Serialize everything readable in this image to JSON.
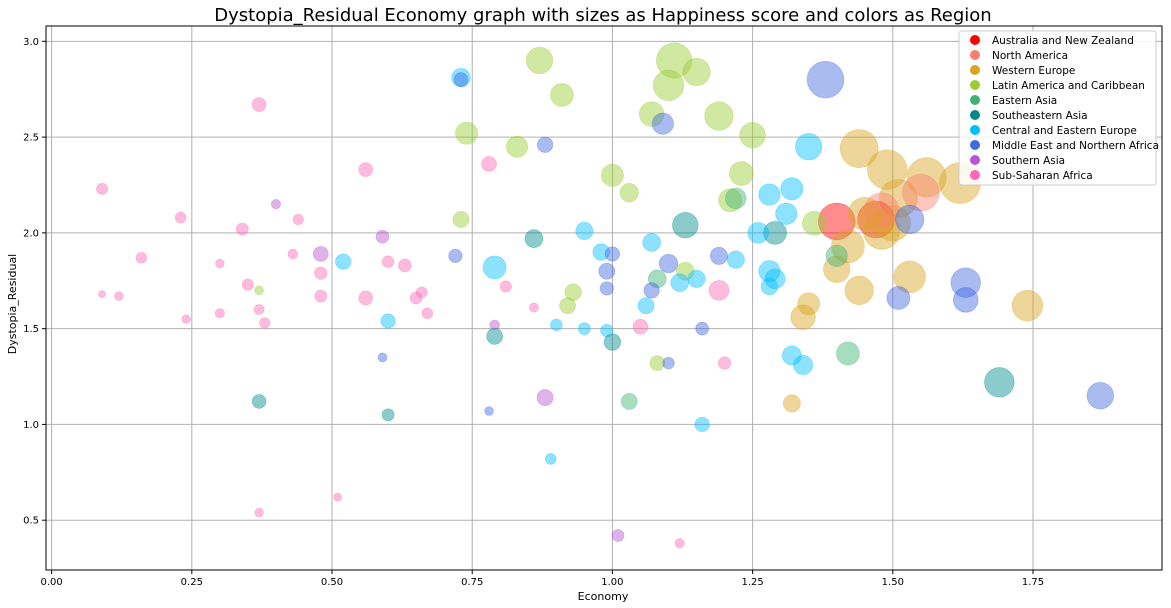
{
  "chart_data": {
    "type": "scatter",
    "title": "Dystopia_Residual Economy graph with sizes as Happiness score and colors as Region",
    "xlabel": "Economy",
    "ylabel": "Dystopia_Residual",
    "xlim": [
      -0.01,
      1.98
    ],
    "ylim": [
      0.24,
      3.08
    ],
    "x_ticks": [
      "0.00",
      "0.25",
      "0.50",
      "0.75",
      "1.00",
      "1.25",
      "1.50",
      "1.75"
    ],
    "y_ticks": [
      "0.5",
      "1.0",
      "1.5",
      "2.0",
      "2.5",
      "3.0"
    ],
    "grid": true,
    "legend_position": "top-right",
    "size_encodes": "Happiness score",
    "color_encodes": "Region",
    "regions": [
      {
        "name": "Australia and New Zealand",
        "color": "#ff0000"
      },
      {
        "name": "North America",
        "color": "#fa8072"
      },
      {
        "name": "Western Europe",
        "color": "#daa520"
      },
      {
        "name": "Latin America and Caribbean",
        "color": "#9acd32"
      },
      {
        "name": "Eastern Asia",
        "color": "#3cb371"
      },
      {
        "name": "Southeastern Asia",
        "color": "#008b8b"
      },
      {
        "name": "Central and Eastern Europe",
        "color": "#00bfff"
      },
      {
        "name": "Middle East and Northern Africa",
        "color": "#4169e1"
      },
      {
        "name": "Southern Asia",
        "color": "#ba55d3"
      },
      {
        "name": "Sub-Saharan Africa",
        "color": "#ff69b4"
      }
    ],
    "points": [
      {
        "region": "Australia and New Zealand",
        "x": 1.4,
        "y": 2.06,
        "size": 7.3
      },
      {
        "region": "Australia and New Zealand",
        "x": 1.47,
        "y": 2.07,
        "size": 7.3
      },
      {
        "region": "North America",
        "x": 1.55,
        "y": 2.21,
        "size": 7.3
      },
      {
        "region": "North America",
        "x": 1.48,
        "y": 2.12,
        "size": 7.1
      },
      {
        "region": "Western Europe",
        "x": 1.62,
        "y": 2.26,
        "size": 7.6
      },
      {
        "region": "Western Europe",
        "x": 1.56,
        "y": 2.29,
        "size": 7.5
      },
      {
        "region": "Western Europe",
        "x": 1.49,
        "y": 2.33,
        "size": 7.5
      },
      {
        "region": "Western Europe",
        "x": 1.44,
        "y": 2.44,
        "size": 7.4
      },
      {
        "region": "Western Europe",
        "x": 1.51,
        "y": 2.18,
        "size": 7.4
      },
      {
        "region": "Western Europe",
        "x": 1.48,
        "y": 2.01,
        "size": 7.3
      },
      {
        "region": "Western Europe",
        "x": 1.5,
        "y": 2.05,
        "size": 7.2
      },
      {
        "region": "Western Europe",
        "x": 1.45,
        "y": 2.1,
        "size": 7.0
      },
      {
        "region": "Western Europe",
        "x": 1.42,
        "y": 1.93,
        "size": 7.0
      },
      {
        "region": "Western Europe",
        "x": 1.53,
        "y": 1.77,
        "size": 6.9
      },
      {
        "region": "Western Europe",
        "x": 1.74,
        "y": 1.62,
        "size": 6.8
      },
      {
        "region": "Western Europe",
        "x": 1.44,
        "y": 1.7,
        "size": 6.6
      },
      {
        "region": "Western Europe",
        "x": 1.4,
        "y": 1.81,
        "size": 6.4
      },
      {
        "region": "Western Europe",
        "x": 1.34,
        "y": 1.56,
        "size": 6.2
      },
      {
        "region": "Western Europe",
        "x": 1.35,
        "y": 1.63,
        "size": 5.9
      },
      {
        "region": "Western Europe",
        "x": 1.32,
        "y": 1.11,
        "size": 5.2
      },
      {
        "region": "Latin America and Caribbean",
        "x": 1.11,
        "y": 2.9,
        "size": 7.2
      },
      {
        "region": "Latin America and Caribbean",
        "x": 1.1,
        "y": 2.77,
        "size": 6.8
      },
      {
        "region": "Latin America and Caribbean",
        "x": 1.15,
        "y": 2.84,
        "size": 6.5
      },
      {
        "region": "Latin America and Caribbean",
        "x": 0.87,
        "y": 2.9,
        "size": 6.4
      },
      {
        "region": "Latin America and Caribbean",
        "x": 1.19,
        "y": 2.61,
        "size": 6.6
      },
      {
        "region": "Latin America and Caribbean",
        "x": 1.25,
        "y": 2.51,
        "size": 6.3
      },
      {
        "region": "Latin America and Caribbean",
        "x": 0.91,
        "y": 2.72,
        "size": 6.0
      },
      {
        "region": "Latin America and Caribbean",
        "x": 1.07,
        "y": 2.62,
        "size": 6.2
      },
      {
        "region": "Latin America and Caribbean",
        "x": 0.74,
        "y": 2.52,
        "size": 5.9
      },
      {
        "region": "Latin America and Caribbean",
        "x": 0.83,
        "y": 2.45,
        "size": 5.8
      },
      {
        "region": "Latin America and Caribbean",
        "x": 1.23,
        "y": 2.31,
        "size": 6.1
      },
      {
        "region": "Latin America and Caribbean",
        "x": 1.0,
        "y": 2.3,
        "size": 5.9
      },
      {
        "region": "Latin America and Caribbean",
        "x": 1.03,
        "y": 2.21,
        "size": 5.4
      },
      {
        "region": "Latin America and Caribbean",
        "x": 1.21,
        "y": 2.17,
        "size": 6.0
      },
      {
        "region": "Latin America and Caribbean",
        "x": 0.73,
        "y": 2.07,
        "size": 5.0
      },
      {
        "region": "Latin America and Caribbean",
        "x": 0.93,
        "y": 1.69,
        "size": 5.1
      },
      {
        "region": "Latin America and Caribbean",
        "x": 0.92,
        "y": 1.62,
        "size": 5.0
      },
      {
        "region": "Latin America and Caribbean",
        "x": 1.13,
        "y": 1.8,
        "size": 5.3
      },
      {
        "region": "Latin America and Caribbean",
        "x": 1.08,
        "y": 1.32,
        "size": 4.8
      },
      {
        "region": "Latin America and Caribbean",
        "x": 1.36,
        "y": 2.05,
        "size": 6.1
      },
      {
        "region": "Latin America and Caribbean",
        "x": 0.37,
        "y": 1.7,
        "size": 3.4
      },
      {
        "region": "Eastern Asia",
        "x": 1.42,
        "y": 1.37,
        "size": 6.0
      },
      {
        "region": "Eastern Asia",
        "x": 1.4,
        "y": 1.88,
        "size": 5.8
      },
      {
        "region": "Eastern Asia",
        "x": 1.22,
        "y": 2.18,
        "size": 5.7
      },
      {
        "region": "Eastern Asia",
        "x": 1.08,
        "y": 1.76,
        "size": 5.3
      },
      {
        "region": "Eastern Asia",
        "x": 1.03,
        "y": 1.12,
        "size": 5.0
      },
      {
        "region": "Southeastern Asia",
        "x": 1.69,
        "y": 1.22,
        "size": 6.7
      },
      {
        "region": "Southeastern Asia",
        "x": 1.13,
        "y": 2.04,
        "size": 6.3
      },
      {
        "region": "Southeastern Asia",
        "x": 1.29,
        "y": 2.0,
        "size": 6.0
      },
      {
        "region": "Southeastern Asia",
        "x": 0.86,
        "y": 1.97,
        "size": 5.3
      },
      {
        "region": "Southeastern Asia",
        "x": 0.79,
        "y": 1.46,
        "size": 5.0
      },
      {
        "region": "Southeastern Asia",
        "x": 1.0,
        "y": 1.43,
        "size": 5.1
      },
      {
        "region": "Southeastern Asia",
        "x": 0.37,
        "y": 1.12,
        "size": 4.6
      },
      {
        "region": "Southeastern Asia",
        "x": 0.6,
        "y": 1.05,
        "size": 4.2
      },
      {
        "region": "Central and Eastern Europe",
        "x": 1.35,
        "y": 2.45,
        "size": 6.4
      },
      {
        "region": "Central and Eastern Europe",
        "x": 1.32,
        "y": 2.23,
        "size": 5.9
      },
      {
        "region": "Central and Eastern Europe",
        "x": 1.28,
        "y": 2.2,
        "size": 5.8
      },
      {
        "region": "Central and Eastern Europe",
        "x": 1.31,
        "y": 2.1,
        "size": 5.8
      },
      {
        "region": "Central and Eastern Europe",
        "x": 1.26,
        "y": 2.0,
        "size": 5.7
      },
      {
        "region": "Central and Eastern Europe",
        "x": 0.73,
        "y": 2.81,
        "size": 5.4
      },
      {
        "region": "Central and Eastern Europe",
        "x": 0.95,
        "y": 2.01,
        "size": 5.2
      },
      {
        "region": "Central and Eastern Europe",
        "x": 1.07,
        "y": 1.95,
        "size": 5.3
      },
      {
        "region": "Central and Eastern Europe",
        "x": 0.98,
        "y": 1.9,
        "size": 5.1
      },
      {
        "region": "Central and Eastern Europe",
        "x": 0.79,
        "y": 1.82,
        "size": 6.0
      },
      {
        "region": "Central and Eastern Europe",
        "x": 1.22,
        "y": 1.86,
        "size": 5.2
      },
      {
        "region": "Central and Eastern Europe",
        "x": 1.28,
        "y": 1.8,
        "size": 5.8
      },
      {
        "region": "Central and Eastern Europe",
        "x": 1.29,
        "y": 1.76,
        "size": 5.6
      },
      {
        "region": "Central and Eastern Europe",
        "x": 1.28,
        "y": 1.72,
        "size": 5.1
      },
      {
        "region": "Central and Eastern Europe",
        "x": 1.12,
        "y": 1.74,
        "size": 5.3
      },
      {
        "region": "Central and Eastern Europe",
        "x": 1.15,
        "y": 1.76,
        "size": 5.2
      },
      {
        "region": "Central and Eastern Europe",
        "x": 1.06,
        "y": 1.62,
        "size": 5.0
      },
      {
        "region": "Central and Eastern Europe",
        "x": 0.52,
        "y": 1.85,
        "size": 4.9
      },
      {
        "region": "Central and Eastern Europe",
        "x": 0.6,
        "y": 1.54,
        "size": 4.7
      },
      {
        "region": "Central and Eastern Europe",
        "x": 0.95,
        "y": 1.5,
        "size": 4.2
      },
      {
        "region": "Central and Eastern Europe",
        "x": 0.9,
        "y": 1.52,
        "size": 4.1
      },
      {
        "region": "Central and Eastern Europe",
        "x": 0.99,
        "y": 1.49,
        "size": 4.3
      },
      {
        "region": "Central and Eastern Europe",
        "x": 1.32,
        "y": 1.36,
        "size": 5.5
      },
      {
        "region": "Central and Eastern Europe",
        "x": 1.34,
        "y": 1.31,
        "size": 5.5
      },
      {
        "region": "Central and Eastern Europe",
        "x": 1.16,
        "y": 1.0,
        "size": 4.7
      },
      {
        "region": "Central and Eastern Europe",
        "x": 0.89,
        "y": 0.82,
        "size": 3.9
      },
      {
        "region": "Middle East and Northern Africa",
        "x": 1.38,
        "y": 2.8,
        "size": 7.3
      },
      {
        "region": "Middle East and Northern Africa",
        "x": 1.09,
        "y": 2.57,
        "size": 5.8
      },
      {
        "region": "Middle East and Northern Africa",
        "x": 0.88,
        "y": 2.46,
        "size": 4.9
      },
      {
        "region": "Middle East and Northern Africa",
        "x": 1.53,
        "y": 2.07,
        "size": 6.6
      },
      {
        "region": "Middle East and Northern Africa",
        "x": 1.63,
        "y": 1.74,
        "size": 6.7
      },
      {
        "region": "Middle East and Northern Africa",
        "x": 1.63,
        "y": 1.65,
        "size": 6.2
      },
      {
        "region": "Middle East and Northern Africa",
        "x": 1.51,
        "y": 1.66,
        "size": 6.0
      },
      {
        "region": "Middle East and Northern Africa",
        "x": 1.87,
        "y": 1.15,
        "size": 6.4
      },
      {
        "region": "Middle East and Northern Africa",
        "x": 1.1,
        "y": 1.84,
        "size": 5.4
      },
      {
        "region": "Middle East and Northern Africa",
        "x": 1.19,
        "y": 1.88,
        "size": 5.2
      },
      {
        "region": "Middle East and Northern Africa",
        "x": 1.0,
        "y": 1.89,
        "size": 4.7
      },
      {
        "region": "Middle East and Northern Africa",
        "x": 0.99,
        "y": 1.8,
        "size": 5.0
      },
      {
        "region": "Middle East and Northern Africa",
        "x": 0.99,
        "y": 1.71,
        "size": 4.5
      },
      {
        "region": "Middle East and Northern Africa",
        "x": 1.07,
        "y": 1.7,
        "size": 4.9
      },
      {
        "region": "Middle East and Northern Africa",
        "x": 0.72,
        "y": 1.88,
        "size": 4.5
      },
      {
        "region": "Middle East and Northern Africa",
        "x": 1.16,
        "y": 1.5,
        "size": 4.4
      },
      {
        "region": "Middle East and Northern Africa",
        "x": 1.1,
        "y": 1.32,
        "size": 4.1
      },
      {
        "region": "Middle East and Northern Africa",
        "x": 0.59,
        "y": 1.35,
        "size": 3.4
      },
      {
        "region": "Middle East and Northern Africa",
        "x": 0.78,
        "y": 1.07,
        "size": 3.3
      },
      {
        "region": "Middle East and Northern Africa",
        "x": 0.73,
        "y": 2.8,
        "size": 4.6
      },
      {
        "region": "Southern Asia",
        "x": 0.48,
        "y": 1.89,
        "size": 4.8
      },
      {
        "region": "Southern Asia",
        "x": 0.59,
        "y": 1.98,
        "size": 4.4
      },
      {
        "region": "Southern Asia",
        "x": 0.4,
        "y": 2.15,
        "size": 3.5
      },
      {
        "region": "Southern Asia",
        "x": 0.79,
        "y": 1.52,
        "size": 3.6
      },
      {
        "region": "Southern Asia",
        "x": 0.88,
        "y": 1.14,
        "size": 5.0
      },
      {
        "region": "Southern Asia",
        "x": 1.01,
        "y": 0.42,
        "size": 4.2
      },
      {
        "region": "Sub-Saharan Africa",
        "x": 0.37,
        "y": 2.67,
        "size": 4.6
      },
      {
        "region": "Sub-Saharan Africa",
        "x": 0.56,
        "y": 2.33,
        "size": 4.6
      },
      {
        "region": "Sub-Saharan Africa",
        "x": 0.78,
        "y": 2.36,
        "size": 4.8
      },
      {
        "region": "Sub-Saharan Africa",
        "x": 0.09,
        "y": 2.23,
        "size": 4.0
      },
      {
        "region": "Sub-Saharan Africa",
        "x": 0.23,
        "y": 2.08,
        "size": 3.9
      },
      {
        "region": "Sub-Saharan Africa",
        "x": 0.34,
        "y": 2.02,
        "size": 4.2
      },
      {
        "region": "Sub-Saharan Africa",
        "x": 0.44,
        "y": 2.07,
        "size": 3.8
      },
      {
        "region": "Sub-Saharan Africa",
        "x": 0.16,
        "y": 1.87,
        "size": 3.9
      },
      {
        "region": "Sub-Saharan Africa",
        "x": 0.3,
        "y": 1.84,
        "size": 3.3
      },
      {
        "region": "Sub-Saharan Africa",
        "x": 0.43,
        "y": 1.89,
        "size": 3.6
      },
      {
        "region": "Sub-Saharan Africa",
        "x": 0.48,
        "y": 1.79,
        "size": 4.3
      },
      {
        "region": "Sub-Saharan Africa",
        "x": 0.6,
        "y": 1.85,
        "size": 4.1
      },
      {
        "region": "Sub-Saharan Africa",
        "x": 0.63,
        "y": 1.83,
        "size": 4.4
      },
      {
        "region": "Sub-Saharan Africa",
        "x": 0.35,
        "y": 1.73,
        "size": 4.0
      },
      {
        "region": "Sub-Saharan Africa",
        "x": 0.09,
        "y": 1.68,
        "size": 2.7
      },
      {
        "region": "Sub-Saharan Africa",
        "x": 0.12,
        "y": 1.67,
        "size": 3.3
      },
      {
        "region": "Sub-Saharan Africa",
        "x": 0.37,
        "y": 1.6,
        "size": 3.7
      },
      {
        "region": "Sub-Saharan Africa",
        "x": 0.3,
        "y": 1.58,
        "size": 3.5
      },
      {
        "region": "Sub-Saharan Africa",
        "x": 0.24,
        "y": 1.55,
        "size": 3.3
      },
      {
        "region": "Sub-Saharan Africa",
        "x": 0.38,
        "y": 1.53,
        "size": 3.8
      },
      {
        "region": "Sub-Saharan Africa",
        "x": 0.48,
        "y": 1.67,
        "size": 4.2
      },
      {
        "region": "Sub-Saharan Africa",
        "x": 0.56,
        "y": 1.66,
        "size": 4.6
      },
      {
        "region": "Sub-Saharan Africa",
        "x": 0.65,
        "y": 1.66,
        "size": 4.2
      },
      {
        "region": "Sub-Saharan Africa",
        "x": 0.66,
        "y": 1.69,
        "size": 3.9
      },
      {
        "region": "Sub-Saharan Africa",
        "x": 0.67,
        "y": 1.58,
        "size": 3.9
      },
      {
        "region": "Sub-Saharan Africa",
        "x": 0.81,
        "y": 1.72,
        "size": 4.0
      },
      {
        "region": "Sub-Saharan Africa",
        "x": 0.86,
        "y": 1.61,
        "size": 3.5
      },
      {
        "region": "Sub-Saharan Africa",
        "x": 1.05,
        "y": 1.51,
        "size": 4.8
      },
      {
        "region": "Sub-Saharan Africa",
        "x": 1.19,
        "y": 1.7,
        "size": 5.6
      },
      {
        "region": "Sub-Saharan Africa",
        "x": 1.2,
        "y": 1.32,
        "size": 4.3
      },
      {
        "region": "Sub-Saharan Africa",
        "x": 0.37,
        "y": 0.54,
        "size": 3.3
      },
      {
        "region": "Sub-Saharan Africa",
        "x": 0.51,
        "y": 0.62,
        "size": 3.1
      },
      {
        "region": "Sub-Saharan Africa",
        "x": 1.12,
        "y": 0.38,
        "size": 3.5
      }
    ]
  }
}
